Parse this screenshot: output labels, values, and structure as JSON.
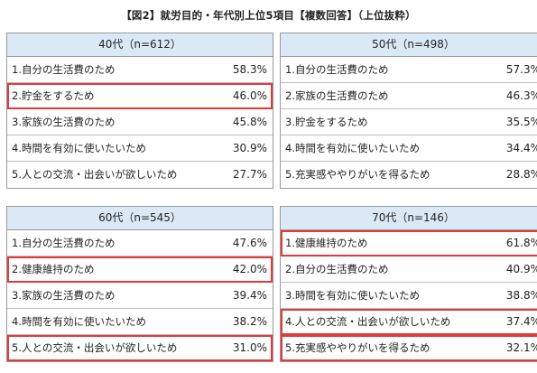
{
  "title": "【図2】就労目的・年代別上位5項目【複数回答】（上位抜粋）",
  "colors": {
    "header_bg": "#dbe9f7",
    "highlight": "#e03a3a",
    "border": "#999999"
  },
  "chart_data": {
    "type": "table",
    "panels": [
      {
        "header": "40代（n=612）",
        "rows": [
          {
            "label": "1.自分の生活費のため",
            "value": "58.3%",
            "highlighted": false
          },
          {
            "label": "2.貯金をするため",
            "value": "46.0%",
            "highlighted": true
          },
          {
            "label": "3.家族の生活費のため",
            "value": "45.8%",
            "highlighted": false
          },
          {
            "label": "4.時間を有効に使いたいため",
            "value": "30.9%",
            "highlighted": false
          },
          {
            "label": "5.人との交流・出会いが欲しいため",
            "value": "27.7%",
            "highlighted": false
          }
        ]
      },
      {
        "header": "50代（n=498）",
        "rows": [
          {
            "label": "1.自分の生活費のため",
            "value": "57.3%",
            "highlighted": false
          },
          {
            "label": "2.家族の生活費のため",
            "value": "46.3%",
            "highlighted": false
          },
          {
            "label": "3.貯金をするため",
            "value": "35.5%",
            "highlighted": false
          },
          {
            "label": "4.時間を有効に使いたいため",
            "value": "34.4%",
            "highlighted": false
          },
          {
            "label": "5.充実感ややりがいを得るため",
            "value": "28.8%",
            "highlighted": false
          }
        ]
      },
      {
        "header": "60代（n=545）",
        "rows": [
          {
            "label": "1.自分の生活費のため",
            "value": "47.6%",
            "highlighted": false
          },
          {
            "label": "2.健康維持のため",
            "value": "42.0%",
            "highlighted": true
          },
          {
            "label": "3.家族の生活費のため",
            "value": "39.4%",
            "highlighted": false
          },
          {
            "label": "4.時間を有効に使いたいため",
            "value": "38.2%",
            "highlighted": false
          },
          {
            "label": "5.人との交流・出会いが欲しいため",
            "value": "31.0%",
            "highlighted": true
          }
        ]
      },
      {
        "header": "70代（n=146）",
        "rows": [
          {
            "label": "1.健康維持のため",
            "value": "61.8%",
            "highlighted": true
          },
          {
            "label": "2.自分の生活費のため",
            "value": "40.9%",
            "highlighted": false
          },
          {
            "label": "3.時間を有効に使いたいため",
            "value": "38.8%",
            "highlighted": false
          },
          {
            "label": "4.人との交流・出会いが欲しいため",
            "value": "37.4%",
            "highlighted": true
          },
          {
            "label": "5.充実感ややりがいを得るため",
            "value": "32.1%",
            "highlighted": true
          }
        ]
      }
    ]
  }
}
